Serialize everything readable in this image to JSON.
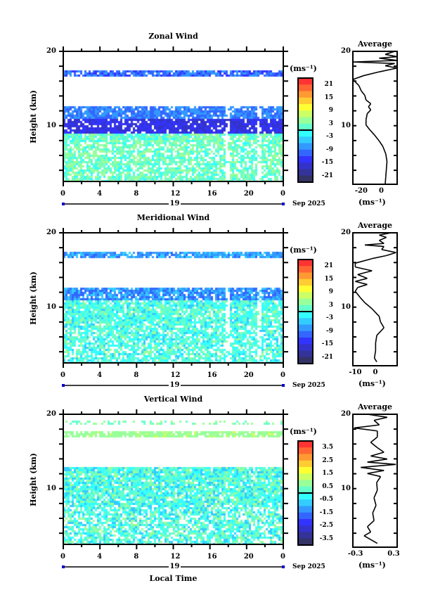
{
  "figure": {
    "xlabel": "Local Time",
    "date_label": "19",
    "month_label": "Sep 2025"
  },
  "chart_data": [
    {
      "type": "heatmap",
      "title": "Zonal Wind",
      "ylabel": "Height (km)",
      "ylim": [
        2.5,
        20
      ],
      "xlim": [
        0,
        24
      ],
      "xticks": [
        "0",
        "4",
        "8",
        "12",
        "16",
        "20",
        "0"
      ],
      "yticks": [
        "20",
        "10"
      ],
      "colorbar": {
        "unit": "(ms⁻¹)",
        "labels": [
          "21",
          "15",
          "9",
          "3",
          "-3",
          "-9",
          "-15",
          "-21"
        ],
        "range": [
          -24,
          24
        ]
      },
      "profile": {
        "title": "Average",
        "xlabel": "(ms⁻¹)",
        "xticks": [
          "-20",
          "0"
        ],
        "xlim": [
          -27,
          10
        ],
        "points": [
          [
            0,
            2.5
          ],
          [
            0.5,
            3.5
          ],
          [
            1,
            4.5
          ],
          [
            1.5,
            5.5
          ],
          [
            0.5,
            6.5
          ],
          [
            -2,
            7.5
          ],
          [
            -5,
            8.2
          ],
          [
            -9,
            9
          ],
          [
            -13,
            9.7
          ],
          [
            -16,
            10.3
          ],
          [
            -16,
            11
          ],
          [
            -15,
            11.8
          ],
          [
            -12,
            12.3
          ],
          [
            -14,
            12.7
          ],
          [
            -12,
            13.1
          ],
          [
            -16,
            13.6
          ],
          [
            -17,
            14.2
          ],
          [
            -20,
            14.8
          ],
          [
            -22,
            15.5
          ],
          [
            -27,
            16.3
          ],
          [
            -18,
            16.8
          ],
          [
            -5,
            17.3
          ],
          [
            10,
            17.8
          ],
          [
            0,
            18.1
          ],
          [
            8,
            18.4
          ],
          [
            -27,
            18.6
          ],
          [
            10,
            18.8
          ],
          [
            -5,
            19.1
          ],
          [
            10,
            19.3
          ],
          [
            0,
            19.6
          ],
          [
            8,
            20
          ]
        ]
      }
    },
    {
      "type": "heatmap",
      "title": "Meridional Wind",
      "ylabel": "Height (km)",
      "ylim": [
        2.5,
        20
      ],
      "xlim": [
        0,
        24
      ],
      "xticks": [
        "0",
        "4",
        "8",
        "12",
        "16",
        "20",
        "0"
      ],
      "yticks": [
        "20",
        "10"
      ],
      "colorbar": {
        "unit": "(ms⁻¹)",
        "labels": [
          "21",
          "15",
          "9",
          "3",
          "-3",
          "-9",
          "-15",
          "-21"
        ],
        "range": [
          -24,
          24
        ]
      },
      "profile": {
        "title": "Average",
        "xlabel": "(ms⁻¹)",
        "xticks": [
          "-10",
          "0"
        ],
        "xlim": [
          -11,
          7.5
        ],
        "points": [
          [
            -1,
            3
          ],
          [
            -2,
            3.5
          ],
          [
            -1.5,
            4.5
          ],
          [
            -1.5,
            5.5
          ],
          [
            -1,
            6.5
          ],
          [
            2,
            7.5
          ],
          [
            0.5,
            8.3
          ],
          [
            0,
            9
          ],
          [
            -3,
            10
          ],
          [
            -6,
            10.8
          ],
          [
            -8,
            11.5
          ],
          [
            -10,
            12.3
          ],
          [
            -9,
            12.8
          ],
          [
            -5,
            13.2
          ],
          [
            -10,
            13.6
          ],
          [
            -5,
            14
          ],
          [
            -9,
            14.5
          ],
          [
            -3,
            15
          ],
          [
            -10,
            15.5
          ],
          [
            -10,
            16
          ],
          [
            -3,
            16.6
          ],
          [
            3,
            17
          ],
          [
            7,
            17.4
          ],
          [
            1,
            17.8
          ],
          [
            2,
            18.2
          ],
          [
            -6,
            18.4
          ],
          [
            2,
            18.6
          ],
          [
            0,
            19
          ],
          [
            3,
            19.4
          ],
          [
            0,
            19.7
          ],
          [
            5,
            20
          ]
        ]
      }
    },
    {
      "type": "heatmap",
      "title": "Vertical Wind",
      "ylabel": "Height (km)",
      "ylim": [
        2.5,
        20
      ],
      "xlim": [
        0,
        24
      ],
      "xticks": [
        "0",
        "4",
        "8",
        "12",
        "16",
        "20",
        "0"
      ],
      "yticks": [
        "20",
        "10"
      ],
      "colorbar": {
        "unit": "(ms⁻¹)",
        "labels": [
          "3.5",
          "2.5",
          "1.5",
          "0.5",
          "-0.5",
          "-1.5",
          "-2.5",
          "-3.5"
        ],
        "range": [
          -4,
          4
        ]
      },
      "profile": {
        "title": "Average",
        "xlabel": "(ms⁻¹)",
        "xticks": [
          "-0.3",
          "0.3"
        ],
        "xlim": [
          -0.32,
          0.35
        ],
        "points": [
          [
            0.05,
            3
          ],
          [
            -0.05,
            3.5
          ],
          [
            -0.15,
            4
          ],
          [
            -0.05,
            4.5
          ],
          [
            -0.1,
            5.2
          ],
          [
            0,
            6
          ],
          [
            -0.02,
            7
          ],
          [
            0.03,
            8
          ],
          [
            0.0,
            9
          ],
          [
            0.05,
            10
          ],
          [
            0.04,
            11
          ],
          [
            0.1,
            11.8
          ],
          [
            -0.1,
            12.2
          ],
          [
            0.15,
            12.6
          ],
          [
            -0.2,
            13
          ],
          [
            0.33,
            13.4
          ],
          [
            -0.1,
            13.7
          ],
          [
            0.2,
            14.1
          ],
          [
            -0.05,
            14.5
          ],
          [
            0.15,
            15
          ],
          [
            0.05,
            15.6
          ],
          [
            -0.05,
            16.3
          ],
          [
            0.05,
            17
          ],
          [
            0.05,
            17.8
          ],
          [
            -0.3,
            18.2
          ],
          [
            0.08,
            18.6
          ],
          [
            0,
            19.2
          ],
          [
            0.2,
            19.6
          ],
          [
            -0.1,
            20
          ]
        ]
      }
    }
  ],
  "colors": [
    "#ff3333",
    "#ff6633",
    "#ff9933",
    "#ffcc33",
    "#ffff33",
    "#ccff66",
    "#99ff99",
    "#66ffcc",
    "#33ffff",
    "#33ccff",
    "#3399ff",
    "#3366ff",
    "#3333ff",
    "#3333cc",
    "#333399",
    "#333366"
  ]
}
